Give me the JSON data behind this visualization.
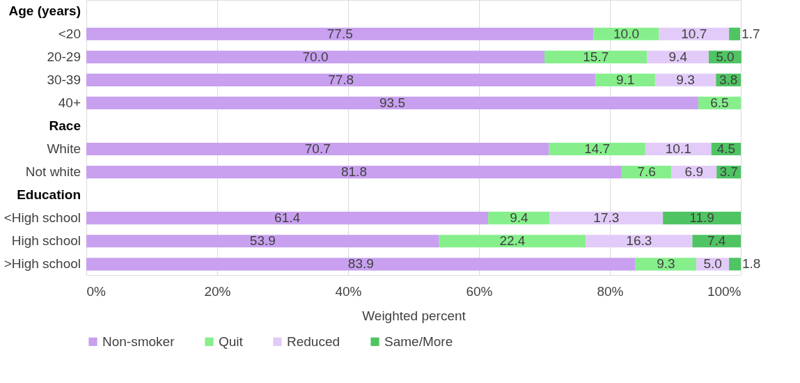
{
  "chart_data": {
    "type": "bar",
    "orientation": "horizontal",
    "stacked": true,
    "xlabel": "Weighted percent",
    "categories": [
      "Age (years)",
      "<20",
      "20-29",
      "30-39",
      "40+",
      "Race",
      "White",
      "Not white",
      "Education",
      "<High school",
      "High school",
      ">High school"
    ],
    "series": [
      {
        "name": "Non-smoker",
        "color": "#c8a0ef",
        "values": [
          null,
          77.5,
          70.0,
          77.8,
          93.5,
          null,
          70.7,
          81.8,
          null,
          61.4,
          53.9,
          83.9
        ],
        "value_labels": [
          null,
          "77.5",
          "70.0",
          "77.8",
          "93.5",
          null,
          "70.7",
          "81.8",
          null,
          "61.4",
          "53.9",
          "83.9"
        ]
      },
      {
        "name": "Quit",
        "color": "#86ef8c",
        "values": [
          null,
          10.0,
          15.7,
          9.1,
          6.5,
          null,
          14.7,
          7.6,
          null,
          9.4,
          22.4,
          9.3
        ],
        "value_labels": [
          null,
          "10.0",
          "15.7",
          "9.1",
          "6.5",
          null,
          "14.7",
          "7.6",
          null,
          "9.4",
          "22.4",
          "9.3"
        ]
      },
      {
        "name": "Reduced",
        "color": "#e2cbf8",
        "values": [
          null,
          10.7,
          9.4,
          9.3,
          null,
          null,
          10.1,
          6.9,
          null,
          17.3,
          16.3,
          5.0
        ],
        "value_labels": [
          null,
          "10.7",
          "9.4",
          "9.3",
          null,
          null,
          "10.1",
          "6.9",
          null,
          "17.3",
          "16.3",
          "5.0"
        ]
      },
      {
        "name": "Same/More",
        "color": "#4fc463",
        "values": [
          null,
          1.7,
          5.0,
          3.8,
          null,
          null,
          4.5,
          3.7,
          null,
          11.9,
          7.4,
          1.8
        ],
        "value_labels": [
          null,
          "1.7",
          "5.0",
          "3.8",
          null,
          null,
          "4.5",
          "3.7",
          null,
          "11.9",
          "7.4",
          "1.8"
        ]
      }
    ],
    "xlim": [
      0,
      100
    ],
    "xticks": [
      {
        "value": 0,
        "label": "0%"
      },
      {
        "value": 20,
        "label": "20%"
      },
      {
        "value": 40,
        "label": "40%"
      },
      {
        "value": 60,
        "label": "60%"
      },
      {
        "value": 80,
        "label": "80%"
      },
      {
        "value": 100,
        "label": "100%"
      }
    ],
    "grid": "x",
    "legend": "bottom"
  }
}
